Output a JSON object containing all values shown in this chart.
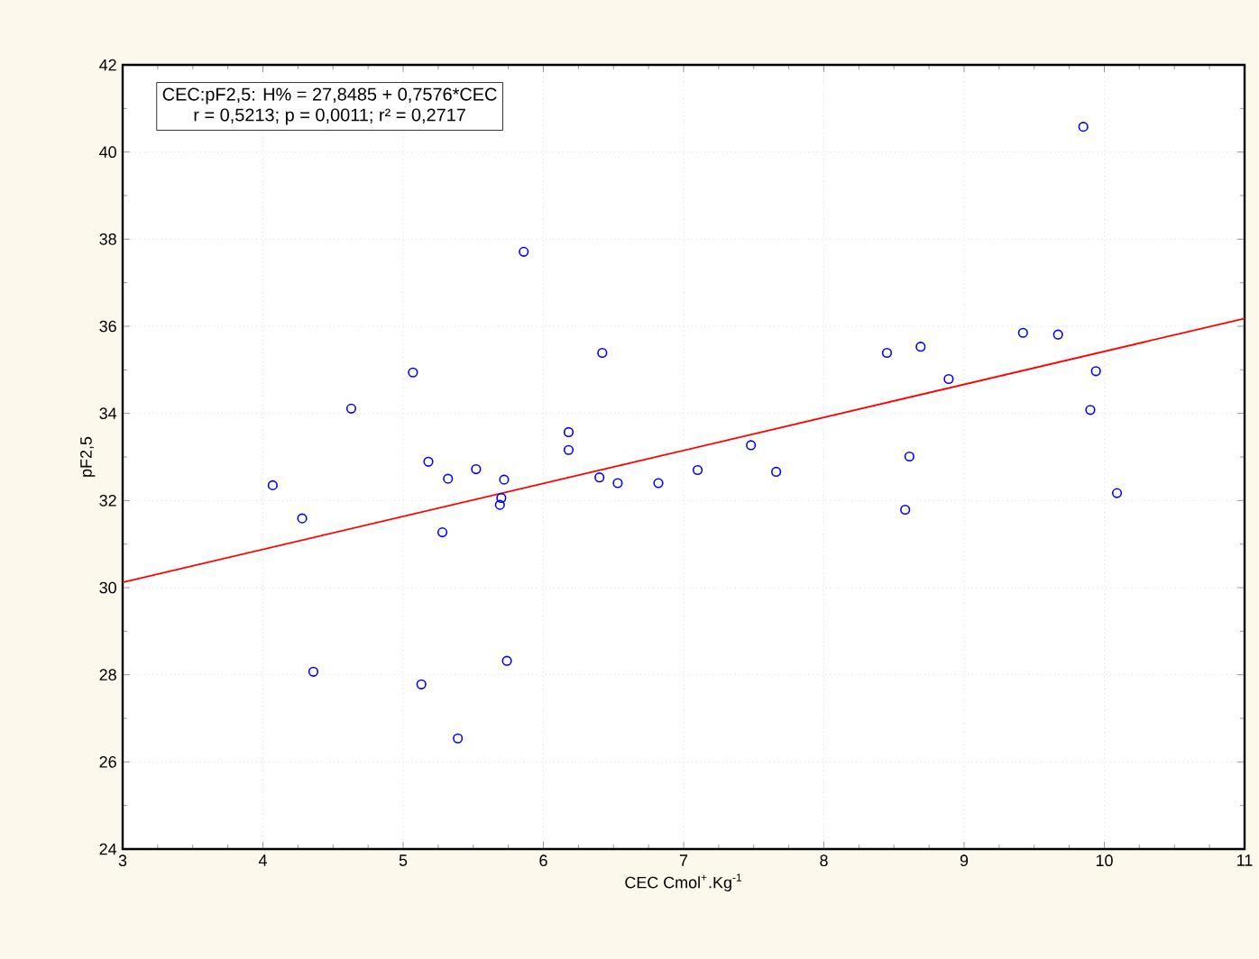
{
  "chart_data": {
    "type": "scatter",
    "xlabel": "CEC Cmol$^{+}$.Kg$^{-1}$",
    "ylabel": "pF2,5",
    "annotations": [
      "CEC:pF2,5: H% = 27,8485 + 0,7576*CEC",
      "r = 0,5213; p = 0,0011; r² = 0,2717"
    ],
    "xlim": [
      3,
      11
    ],
    "ylim": [
      24,
      42
    ],
    "xticks": [
      3,
      4,
      5,
      6,
      7,
      8,
      9,
      10,
      11
    ],
    "yticks": [
      24,
      26,
      28,
      30,
      32,
      34,
      36,
      38,
      40,
      42
    ],
    "grid": true,
    "series": [
      {
        "marker": "circle",
        "color": "#0000ff",
        "x": [
          4.07,
          4.28,
          4.36,
          4.63,
          5.07,
          5.18,
          5.13,
          5.28,
          5.32,
          5.39,
          5.52,
          5.69,
          5.7,
          5.72,
          5.74,
          5.86,
          6.18,
          6.18,
          6.42,
          6.4,
          6.53,
          6.82,
          7.1,
          7.48,
          7.66,
          8.45,
          8.69,
          8.58,
          8.61,
          8.89,
          9.42,
          9.67,
          9.85,
          9.94,
          9.9,
          10.09
        ],
        "values": [
          32.35,
          31.59,
          28.07,
          34.11,
          34.94,
          32.89,
          27.78,
          31.27,
          32.5,
          26.54,
          32.72,
          31.9,
          32.06,
          32.48,
          28.32,
          37.71,
          33.57,
          33.16,
          35.39,
          32.53,
          32.4,
          32.4,
          32.7,
          33.27,
          32.66,
          35.39,
          35.53,
          31.79,
          33.01,
          34.79,
          35.85,
          35.81,
          40.58,
          34.97,
          34.08,
          32.17
        ]
      },
      {
        "type": "line",
        "color": "#ff0000",
        "x": [
          3,
          11
        ],
        "values": [
          30.12,
          36.18
        ]
      }
    ]
  }
}
